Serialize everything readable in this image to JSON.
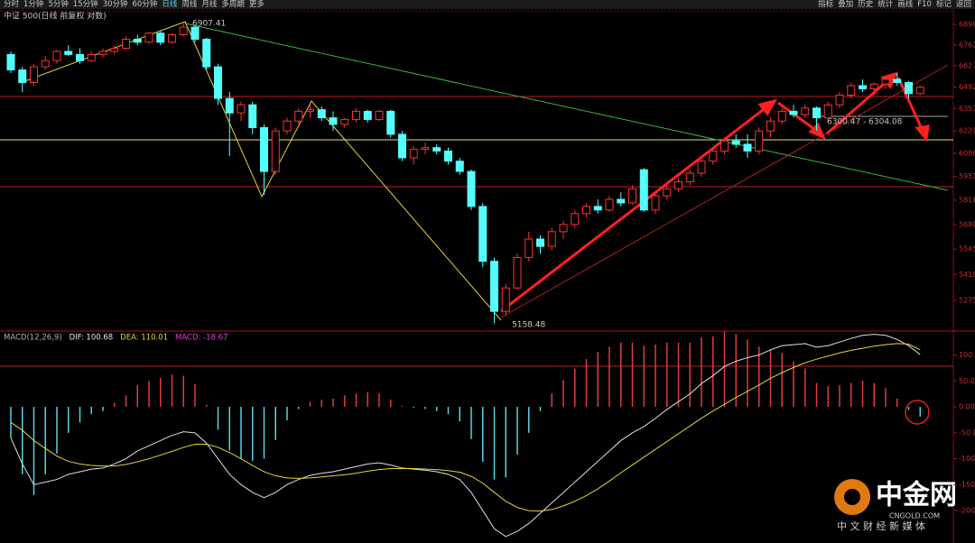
{
  "toolbar": {
    "left": [
      "分时",
      "1分钟",
      "5分钟",
      "15分钟",
      "30分钟",
      "60分钟",
      "日线",
      "周线",
      "月线",
      "多周期",
      "更多"
    ],
    "right": [
      "指标",
      "叠加",
      "历史",
      "统计",
      "画线",
      "F10",
      "标记",
      "返回"
    ]
  },
  "chart_data": [
    {
      "type": "candlestick",
      "title": "中证 500(日线 前复权 对数)",
      "log": true,
      "up_color": "#ff3232",
      "down_color": "#54ffff",
      "ylim": [
        5130,
        6978
      ],
      "yticks": [
        6898,
        6762,
        6627,
        6492,
        6357,
        6221,
        6086,
        5951,
        5816,
        5680,
        5545,
        5410,
        5275
      ],
      "annotations": [
        "6907.41",
        "5158.48",
        "6300.47 - 6304.08"
      ],
      "open": [
        6700,
        6600,
        6520,
        6620,
        6660,
        6720,
        6700,
        6660,
        6700,
        6720,
        6740,
        6800,
        6780,
        6840,
        6780,
        6830,
        6880,
        6800,
        6620,
        6420,
        6330,
        6380,
        6240,
        5980,
        6220,
        6280,
        6340,
        6350,
        6300,
        6260,
        6290,
        6340,
        6290,
        6340,
        6200,
        6060,
        6110,
        6120,
        6100,
        6040,
        5980,
        5780,
        5480,
        5220,
        5340,
        5500,
        5600,
        5560,
        5640,
        5680,
        5740,
        5780,
        5760,
        5820,
        5800,
        5990,
        5760,
        5840,
        5880,
        5920,
        5970,
        6040,
        6100,
        6160,
        6140,
        6100,
        6220,
        6280,
        6340,
        6320,
        6360,
        6300,
        6380,
        6440,
        6500,
        6480,
        6510,
        6540,
        6520,
        6450
      ],
      "high": [
        6720,
        6620,
        6640,
        6690,
        6730,
        6760,
        6740,
        6720,
        6740,
        6760,
        6820,
        6830,
        6850,
        6860,
        6840,
        6907.41,
        6890,
        6810,
        6640,
        6460,
        6400,
        6400,
        6260,
        6240,
        6300,
        6360,
        6380,
        6370,
        6340,
        6300,
        6360,
        6350,
        6350,
        6350,
        6220,
        6130,
        6150,
        6140,
        6120,
        6060,
        5990,
        5800,
        5500,
        5360,
        5520,
        5640,
        5620,
        5660,
        5700,
        5760,
        5800,
        5820,
        5840,
        5860,
        5900,
        6000,
        5860,
        5900,
        5940,
        5990,
        6060,
        6120,
        6180,
        6200,
        6200,
        6240,
        6300,
        6360,
        6380,
        6380,
        6370,
        6400,
        6460,
        6520,
        6540,
        6520,
        6560,
        6580,
        6530,
        6500
      ],
      "low": [
        6580,
        6460,
        6500,
        6600,
        6640,
        6690,
        6640,
        6650,
        6680,
        6700,
        6730,
        6760,
        6770,
        6760,
        6770,
        6820,
        6780,
        6600,
        6380,
        6070,
        6280,
        6200,
        5846,
        5960,
        6200,
        6260,
        6300,
        6280,
        6220,
        6240,
        6270,
        6270,
        6280,
        6180,
        6040,
        6020,
        6080,
        6080,
        6020,
        5960,
        5760,
        5450,
        5158.48,
        5200,
        5330,
        5480,
        5520,
        5540,
        5600,
        5660,
        5720,
        5740,
        5750,
        5780,
        5790,
        5750,
        5740,
        5820,
        5860,
        5900,
        5950,
        6020,
        6080,
        6120,
        6060,
        6080,
        6180,
        6260,
        6300,
        6300,
        6221,
        6290,
        6360,
        6420,
        6460,
        6440,
        6480,
        6500,
        6420,
        6440
      ],
      "close": [
        6600,
        6520,
        6620,
        6660,
        6720,
        6700,
        6660,
        6700,
        6720,
        6740,
        6800,
        6780,
        6840,
        6780,
        6830,
        6880,
        6800,
        6620,
        6420,
        6330,
        6380,
        6240,
        5980,
        6220,
        6280,
        6340,
        6350,
        6300,
        6260,
        6290,
        6340,
        6290,
        6340,
        6200,
        6060,
        6110,
        6120,
        6100,
        6040,
        5980,
        5780,
        5480,
        5220,
        5340,
        5500,
        5600,
        5560,
        5640,
        5680,
        5740,
        5780,
        5760,
        5820,
        5800,
        5880,
        5760,
        5840,
        5880,
        5920,
        5970,
        6040,
        6100,
        6160,
        6140,
        6100,
        6220,
        6280,
        6340,
        6320,
        6360,
        6300,
        6380,
        6440,
        6500,
        6480,
        6510,
        6540,
        6520,
        6450,
        6490
      ]
    },
    {
      "type": "macd",
      "legend": [
        {
          "text": "MACD(12,26,9)",
          "color": "#b0b0b0"
        },
        {
          "text": "DIF: 100.68",
          "color": "#e8e8e8"
        },
        {
          "text": "DEA: 110.01",
          "color": "#e6d33a"
        },
        {
          "text": "MACD: -18.67",
          "color": "#e040e0"
        }
      ],
      "ylim": [
        -259,
        141
      ],
      "yticks": [
        {
          "value": 100,
          "label": "100.00"
        },
        {
          "value": 50,
          "label": "50.00"
        },
        {
          "value": 0,
          "label": "0.00"
        },
        {
          "value": -50,
          "label": "-50.00"
        },
        {
          "value": -100,
          "label": "-100.0"
        },
        {
          "value": -150,
          "label": "-150.0"
        },
        {
          "value": -200,
          "label": "-200.0"
        }
      ],
      "series": [
        {
          "name": "DIF",
          "color": "#e0e0e0",
          "values": [
            -60,
            -110,
            -150,
            -145,
            -140,
            -130,
            -125,
            -120,
            -118,
            -110,
            -100,
            -85,
            -75,
            -65,
            -55,
            -48,
            -50,
            -70,
            -100,
            -130,
            -150,
            -165,
            -175,
            -165,
            -150,
            -140,
            -132,
            -128,
            -125,
            -120,
            -115,
            -110,
            -108,
            -112,
            -118,
            -120,
            -122,
            -125,
            -130,
            -140,
            -165,
            -200,
            -235,
            -250,
            -240,
            -225,
            -205,
            -185,
            -165,
            -145,
            -125,
            -105,
            -85,
            -65,
            -50,
            -38,
            -22,
            -5,
            10,
            25,
            45,
            60,
            78,
            88,
            95,
            100,
            110,
            118,
            120,
            122,
            115,
            118,
            125,
            132,
            138,
            140,
            138,
            130,
            118,
            100.68
          ]
        },
        {
          "name": "DEA",
          "color": "#e6d33a",
          "values": [
            -30,
            -45,
            -65,
            -80,
            -95,
            -105,
            -110,
            -113,
            -114,
            -114,
            -111,
            -106,
            -100,
            -93,
            -86,
            -78,
            -72,
            -72,
            -78,
            -88,
            -100,
            -113,
            -125,
            -133,
            -137,
            -138,
            -137,
            -135,
            -133,
            -131,
            -128,
            -124,
            -121,
            -119,
            -119,
            -119,
            -120,
            -121,
            -123,
            -126,
            -134,
            -147,
            -165,
            -182,
            -194,
            -200,
            -201,
            -198,
            -191,
            -182,
            -171,
            -158,
            -143,
            -127,
            -112,
            -97,
            -82,
            -67,
            -52,
            -37,
            -22,
            -8,
            5,
            18,
            30,
            42,
            55,
            66,
            76,
            85,
            92,
            98,
            104,
            109,
            113,
            117,
            120,
            122,
            121,
            110.01
          ]
        }
      ],
      "histogram": {
        "up_color": "#e03c3c",
        "down_color": "#5ad2e6",
        "values": [
          -60,
          -130,
          -170,
          -130,
          -90,
          -50,
          -30,
          -14,
          -8,
          8,
          22,
          42,
          50,
          56,
          62,
          60,
          44,
          4,
          -44,
          -84,
          -100,
          -104,
          -100,
          -64,
          -26,
          -4,
          10,
          14,
          16,
          22,
          26,
          28,
          26,
          14,
          2,
          -2,
          -4,
          -8,
          -14,
          -28,
          -62,
          -106,
          -140,
          -136,
          -92,
          -50,
          -8,
          26,
          52,
          74,
          92,
          106,
          116,
          124,
          124,
          118,
          120,
          124,
          124,
          124,
          134,
          136,
          146,
          140,
          130,
          116,
          110,
          104,
          88,
          74,
          46,
          40,
          42,
          46,
          50,
          46,
          36,
          16,
          -6,
          -18.67
        ]
      }
    }
  ],
  "watermark": {
    "brand": "中金网",
    "site": "CNGOLD.COM",
    "slogan": "中 文 财 经 新 媒 体"
  }
}
